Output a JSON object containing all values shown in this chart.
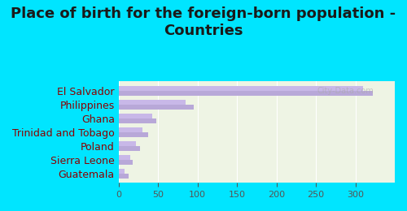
{
  "title": "Place of birth for the foreign-born population -\nCountries",
  "categories": [
    "El Salvador",
    "Philippines",
    "Ghana",
    "Trinidad and Tobago",
    "Poland",
    "Sierra Leone",
    "Guatemala"
  ],
  "values1": [
    322,
    95,
    48,
    38,
    27,
    18,
    13
  ],
  "values2": [
    310,
    85,
    43,
    30,
    22,
    15,
    8
  ],
  "bar_color1": "#b8a8d8",
  "bar_color2": "#c8b8e8",
  "background_outer": "#00e5ff",
  "background_inner_top": "#f0f4e8",
  "background_inner_bottom": "#e8f0d0",
  "title_color": "#1a1a1a",
  "label_color": "#8b0000",
  "tick_color": "#555555",
  "xlim": [
    0,
    350
  ],
  "xticks": [
    0,
    50,
    100,
    150,
    200,
    250,
    300
  ],
  "bar_height": 0.35,
  "title_fontsize": 13,
  "label_fontsize": 9,
  "tick_fontsize": 8
}
